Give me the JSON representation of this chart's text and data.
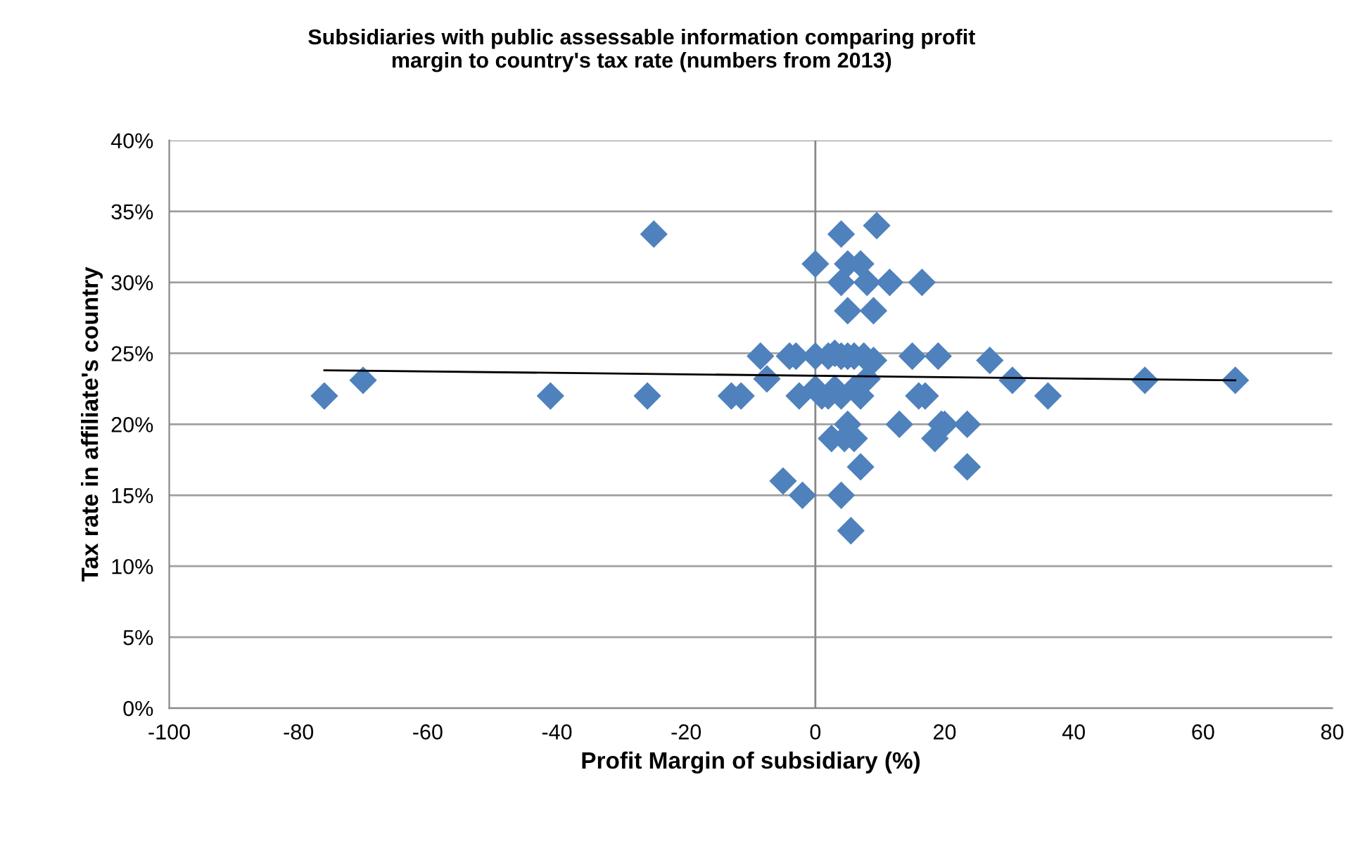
{
  "chart_data": {
    "type": "scatter",
    "title": "Subsidiaries with public assessable information comparing profit\nmargin to country's tax rate (numbers from 2013)",
    "xlabel": "Profit Margin of subsidiary (%)",
    "ylabel": "Tax rate in affiliate's country",
    "xlim": [
      -100,
      80
    ],
    "xticks": [
      -100,
      -80,
      -60,
      -40,
      -20,
      0,
      20,
      40,
      60,
      80
    ],
    "ylim": [
      0,
      40
    ],
    "yticks": [
      {
        "value": 0,
        "label": "0%"
      },
      {
        "value": 5,
        "label": "5%"
      },
      {
        "value": 10,
        "label": "10%"
      },
      {
        "value": 15,
        "label": "15%"
      },
      {
        "value": 20,
        "label": "20%"
      },
      {
        "value": 25,
        "label": "25%"
      },
      {
        "value": 30,
        "label": "30%"
      },
      {
        "value": 35,
        "label": "35%"
      },
      {
        "value": 40,
        "label": "40%"
      }
    ],
    "grid": "y",
    "marker": "diamond",
    "legend": false,
    "series": [
      {
        "color": "#4f81bd",
        "x": [
          -76,
          -70,
          -41,
          -26,
          -25,
          -13,
          -11.5,
          -8.5,
          -7.5,
          -4,
          -3,
          -2.5,
          -2,
          -5,
          0,
          0,
          0,
          1,
          2,
          2,
          2.5,
          3,
          3,
          4,
          4,
          4,
          4,
          4,
          4.5,
          5,
          5,
          5,
          5,
          5.5,
          6,
          6,
          6,
          7,
          7,
          7,
          7.5,
          8,
          8,
          9,
          9,
          9.5,
          11.5,
          13,
          15,
          16,
          16.5,
          17,
          18.5,
          19,
          19.5,
          20,
          23.5,
          23.5,
          27,
          30.5,
          36,
          51,
          65
        ],
        "values": [
          22,
          23.1,
          22,
          22,
          33.4,
          22,
          22,
          24.8,
          23.2,
          24.8,
          24.8,
          22,
          15,
          16,
          31.3,
          24.8,
          22.5,
          22,
          24.8,
          22,
          19,
          25,
          22.5,
          33.4,
          30,
          24.8,
          22,
          15,
          19,
          20,
          28,
          31.3,
          24.8,
          12.5,
          22.5,
          24.8,
          19,
          31.3,
          17,
          22,
          24.8,
          30,
          23.2,
          24.5,
          28,
          34,
          30,
          20,
          24.8,
          22,
          30,
          22,
          19,
          24.8,
          20,
          20,
          17,
          20,
          24.5,
          23.1,
          22,
          23.1,
          23.1
        ]
      },
      {
        "type": "line",
        "color": "#000000",
        "marker": "none",
        "x": [
          -76,
          65
        ],
        "values": [
          23.8,
          23.1
        ]
      }
    ]
  }
}
